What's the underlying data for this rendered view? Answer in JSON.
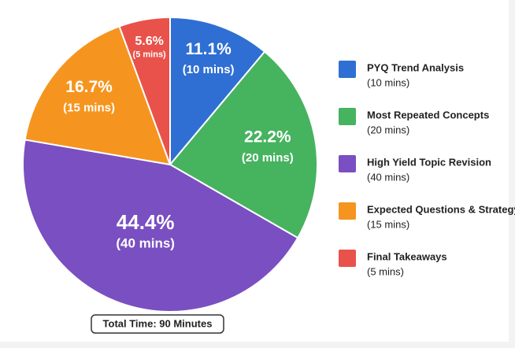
{
  "chart_data": {
    "type": "pie",
    "categories": [
      "PYQ Trend Analysis",
      "Most Repeated Concepts",
      "High Yield Topic Revision",
      "Expected Questions & Strategy",
      "Final Takeaways"
    ],
    "values": [
      11.1,
      22.2,
      44.4,
      16.7,
      5.6
    ],
    "value_labels": [
      "11.1%",
      "22.2%",
      "44.4%",
      "16.7%",
      "5.6%"
    ],
    "duration_labels": [
      "(10 mins)",
      "(20 mins)",
      "(40 mins)",
      "(15 mins)",
      "(5 mins)"
    ],
    "colors": [
      "#2f6fd3",
      "#46b35f",
      "#7a4fc1",
      "#f5951f",
      "#e8524a"
    ],
    "legend": "right",
    "footer": "Total Time: 90 Minutes"
  }
}
